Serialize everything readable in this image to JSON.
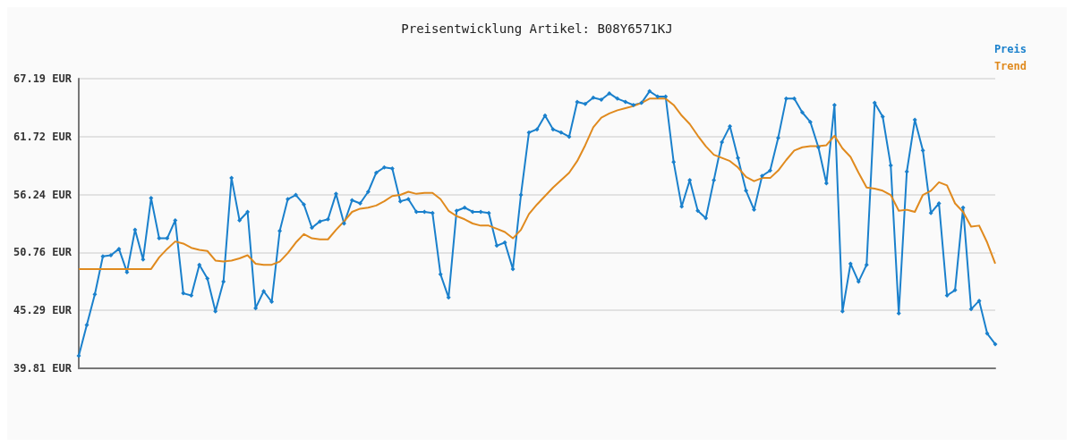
{
  "chart_data": {
    "type": "line",
    "title": "Preisentwicklung Artikel: B08Y6571KJ",
    "categories": [
      null,
      null,
      null,
      null,
      null,
      null,
      null,
      null,
      null,
      null,
      null,
      null,
      null,
      null,
      null,
      null,
      null,
      null,
      null,
      null,
      null,
      null,
      null,
      null,
      null,
      null,
      null,
      null,
      null,
      null,
      null,
      null,
      null,
      null,
      null,
      null,
      null,
      null,
      null,
      null,
      null,
      null,
      null,
      null,
      null,
      null,
      null,
      null,
      null,
      null,
      null,
      null,
      null,
      null,
      null,
      null,
      null,
      null,
      null,
      null,
      null,
      null,
      null,
      null,
      null,
      null,
      null,
      null,
      null,
      null,
      null,
      null,
      null,
      null,
      null,
      null,
      null,
      null,
      null,
      null,
      null,
      null,
      null,
      null,
      null,
      null,
      null,
      null,
      null,
      null,
      null,
      null,
      null,
      null,
      null,
      null,
      null,
      null,
      null,
      null,
      null,
      null,
      null,
      null,
      null,
      null,
      null,
      null,
      null,
      null,
      null,
      null,
      null,
      null,
      null
    ],
    "series": [
      {
        "name": "Preis",
        "color": "#1a80cc",
        "marker": "diamond",
        "values": [
          41.0,
          43.9,
          46.8,
          50.4,
          50.5,
          51.1,
          48.9,
          52.9,
          50.1,
          55.9,
          52.1,
          52.1,
          53.8,
          46.9,
          46.7,
          49.6,
          48.3,
          45.2,
          48.0,
          57.8,
          53.8,
          54.6,
          45.5,
          47.1,
          46.1,
          52.8,
          55.8,
          56.2,
          55.3,
          53.1,
          53.7,
          53.9,
          56.3,
          53.5,
          55.7,
          55.4,
          56.5,
          58.3,
          58.8,
          58.7,
          55.6,
          55.8,
          54.6,
          54.6,
          54.5,
          48.7,
          46.5,
          54.7,
          55.0,
          54.6,
          54.6,
          54.5,
          51.4,
          51.7,
          49.2,
          56.2,
          62.1,
          62.4,
          63.7,
          62.4,
          62.1,
          61.7,
          65.0,
          64.8,
          65.4,
          65.2,
          65.8,
          65.3,
          65.0,
          64.7,
          64.9,
          66.0,
          65.5,
          65.5,
          59.3,
          55.1,
          57.6,
          54.7,
          54.0,
          57.6,
          61.2,
          62.7,
          59.7,
          56.6,
          54.8,
          58.0,
          58.5,
          61.6,
          65.3,
          65.3,
          64.0,
          63.1,
          60.7,
          57.3,
          64.7,
          45.2,
          49.7,
          48.0,
          49.6,
          64.9,
          63.6,
          59.0,
          45.0,
          58.4,
          63.3,
          60.4,
          54.5,
          55.4,
          46.7,
          47.2,
          55.0,
          45.4,
          46.2,
          43.1,
          42.1
        ]
      },
      {
        "name": "Trend",
        "color": "#e08a1e",
        "marker": "none",
        "values": [
          49.2,
          49.2,
          49.2,
          49.2,
          49.2,
          49.2,
          49.2,
          49.2,
          49.2,
          49.2,
          50.3,
          51.1,
          51.8,
          51.6,
          51.2,
          51.0,
          50.9,
          50.0,
          49.9,
          50.0,
          50.2,
          50.5,
          49.7,
          49.6,
          49.6,
          49.9,
          50.7,
          51.7,
          52.5,
          52.1,
          52.0,
          52.0,
          52.9,
          53.7,
          54.6,
          54.9,
          55.0,
          55.2,
          55.6,
          56.1,
          56.2,
          56.5,
          56.3,
          56.4,
          56.4,
          55.8,
          54.7,
          54.2,
          53.9,
          53.5,
          53.3,
          53.3,
          53.0,
          52.7,
          52.1,
          52.9,
          54.4,
          55.3,
          56.1,
          56.9,
          57.6,
          58.3,
          59.4,
          60.9,
          62.6,
          63.5,
          63.9,
          64.2,
          64.4,
          64.6,
          64.9,
          65.3,
          65.3,
          65.3,
          64.7,
          63.7,
          62.9,
          61.8,
          60.8,
          60.0,
          59.7,
          59.4,
          58.8,
          57.9,
          57.5,
          57.8,
          57.8,
          58.5,
          59.5,
          60.4,
          60.7,
          60.8,
          60.8,
          60.9,
          61.8,
          60.6,
          59.8,
          58.3,
          56.9,
          56.8,
          56.6,
          56.2,
          54.7,
          54.8,
          54.6,
          56.2,
          56.6,
          57.4,
          57.1,
          55.4,
          54.6,
          53.2,
          53.3,
          51.7,
          49.7
        ]
      }
    ],
    "ylim": [
      39.81,
      67.19
    ],
    "yticks": [
      {
        "value": 39.81,
        "label": "39.81 EUR"
      },
      {
        "value": 45.29,
        "label": "45.29 EUR"
      },
      {
        "value": 50.76,
        "label": "50.76 EUR"
      },
      {
        "value": 56.24,
        "label": "56.24 EUR"
      },
      {
        "value": 61.72,
        "label": "61.72 EUR"
      },
      {
        "value": 67.19,
        "label": "67.19 EUR"
      }
    ],
    "grid": "y",
    "legend": "top right",
    "tick_labels": "y"
  }
}
